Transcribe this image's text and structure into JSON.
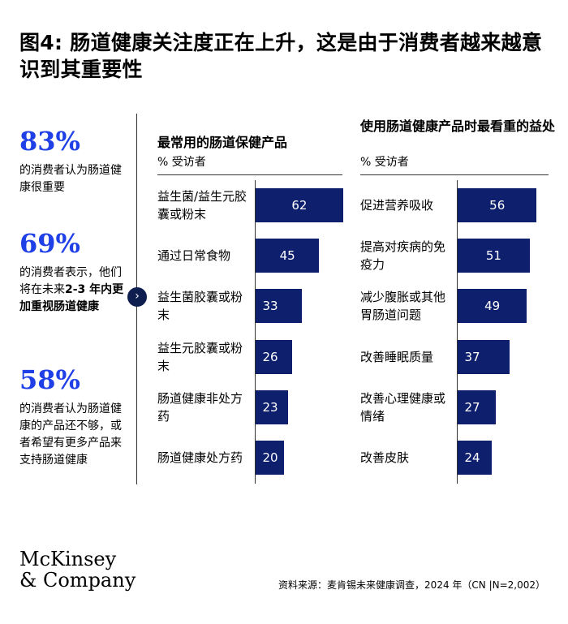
{
  "title": "图4: 肠道健康关注度正在上升，这是由于消费者越来越意识到其重要性",
  "stats": [
    {
      "value": "83%",
      "text": "的消费者认为肠道健康很重要"
    },
    {
      "value": "69%",
      "text_plain": "的消费者表示，他们将在未来",
      "text_bold": "2-3 年内更加重视肠道健康"
    },
    {
      "value": "58%",
      "text": "的消费者认为肠道健康的产品还不够，或者希望有更多产品来支持肠道健康"
    }
  ],
  "arrow_icon": "chevron-right-icon",
  "chart_data": [
    {
      "type": "bar",
      "title": "最常用的肠道保健产品",
      "unit_label": "% 受访者",
      "categories": [
        "益生菌/益生元胶囊或粉末",
        "通过日常食物",
        "益生菌胶囊或粉末",
        "益生元胶囊或粉末",
        "肠道健康非处方药",
        "肠道健康处方药"
      ],
      "values": [
        62,
        45,
        33,
        26,
        23,
        20
      ],
      "orientation": "horizontal",
      "bar_color": "#0e1f6e"
    },
    {
      "type": "bar",
      "title": "使用肠道健康产品时最看重的益处",
      "unit_label": "% 受访者",
      "categories": [
        "促进营养吸收",
        "提高对疾病的免疫力",
        "减少腹胀或其他胃肠道问题",
        "改善睡眠质量",
        "改善心理健康或情绪",
        "改善皮肤"
      ],
      "values": [
        56,
        51,
        49,
        37,
        27,
        24
      ],
      "orientation": "horizontal",
      "bar_color": "#0e1f6e"
    }
  ],
  "logo": {
    "line1": "McKinsey",
    "line2": "& Company"
  },
  "source": "资料来源：麦肯锡未来健康调查，2024 年（CN |N=2,002）",
  "colors": {
    "stat_accent": "#1f40e6",
    "bar": "#0e1f6e",
    "arrow_bg": "#0e1f4f"
  }
}
